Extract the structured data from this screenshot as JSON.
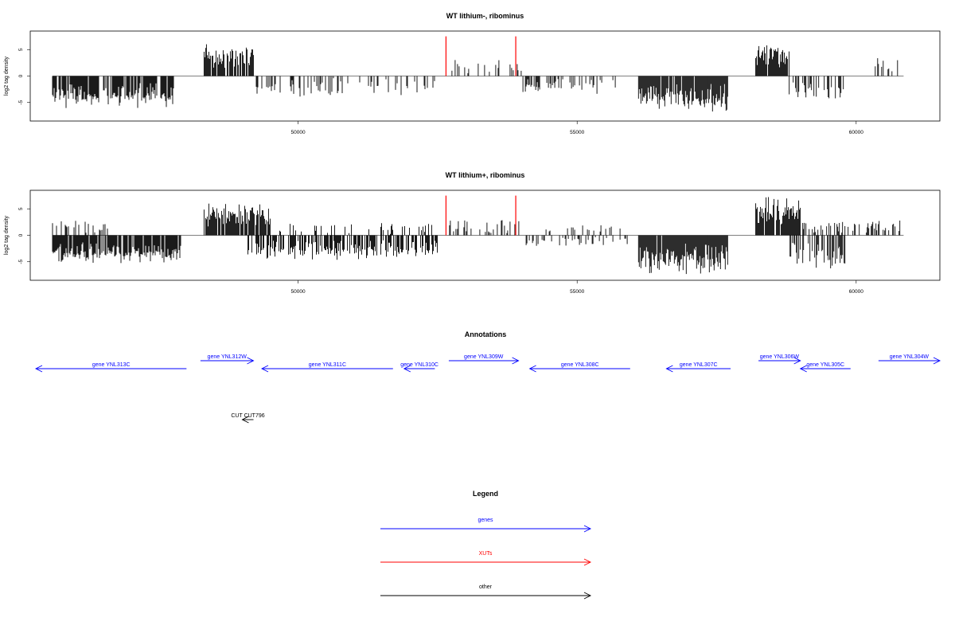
{
  "colors": {
    "gene": "#0000ff",
    "xut": "#ff0000",
    "other": "#000000",
    "signal": "#000000",
    "marker": "#ff0000"
  },
  "chart_data": [
    {
      "type": "bar",
      "title": "WT lithium-, ribominus",
      "ylabel": "log2 tag density",
      "xlim": [
        45200,
        61500
      ],
      "ylim": [
        -8.5,
        8.5
      ],
      "xticks": [
        50000,
        55000,
        60000
      ],
      "yticks": [
        -5,
        0,
        5
      ],
      "markers_x": [
        52650,
        53900
      ],
      "marker_height": 7.5,
      "segments": [
        {
          "start": 45600,
          "end": 47800,
          "sign": -1,
          "base": 3.0,
          "amp": 2.5,
          "density": 0.8
        },
        {
          "start": 48300,
          "end": 49200,
          "sign": 1,
          "base": 2.5,
          "amp": 3.0,
          "density": 0.8
        },
        {
          "start": 49250,
          "end": 52500,
          "sign": -1,
          "base": 0.8,
          "amp": 3.0,
          "density": 0.22
        },
        {
          "start": 52700,
          "end": 54000,
          "sign": 1,
          "base": 0.5,
          "amp": 2.5,
          "density": 0.2
        },
        {
          "start": 54000,
          "end": 55700,
          "sign": -1,
          "base": 1.0,
          "amp": 2.5,
          "density": 0.35
        },
        {
          "start": 56100,
          "end": 57700,
          "sign": -1,
          "base": 3.0,
          "amp": 3.5,
          "density": 0.9
        },
        {
          "start": 58200,
          "end": 58800,
          "sign": 1,
          "base": 3.0,
          "amp": 3.3,
          "density": 0.9
        },
        {
          "start": 58800,
          "end": 59800,
          "sign": -1,
          "base": 1.5,
          "amp": 3.0,
          "density": 0.4
        },
        {
          "start": 60200,
          "end": 60800,
          "sign": 1,
          "base": 1.0,
          "amp": 2.5,
          "density": 0.2
        }
      ]
    },
    {
      "type": "bar",
      "title": "WT lithium+, ribominus",
      "ylabel": "log2 tag density",
      "xlim": [
        45200,
        61500
      ],
      "ylim": [
        -8.5,
        8.5
      ],
      "xticks": [
        50000,
        55000,
        60000
      ],
      "yticks": [
        -5,
        0,
        5
      ],
      "markers_x": [
        52650,
        53900
      ],
      "marker_height": 7.5,
      "segments": [
        {
          "start": 45600,
          "end": 46600,
          "sign": 1,
          "base": 0.5,
          "amp": 2.5,
          "density": 0.3
        },
        {
          "start": 45600,
          "end": 47900,
          "sign": -1,
          "base": 2.5,
          "amp": 2.5,
          "density": 0.85
        },
        {
          "start": 48300,
          "end": 49500,
          "sign": 1,
          "base": 2.5,
          "amp": 3.5,
          "density": 0.9
        },
        {
          "start": 49100,
          "end": 52500,
          "sign": -1,
          "base": 1.5,
          "amp": 3.0,
          "density": 0.6
        },
        {
          "start": 49600,
          "end": 52400,
          "sign": 1,
          "base": 0.5,
          "amp": 2.0,
          "density": 0.2
        },
        {
          "start": 52700,
          "end": 54000,
          "sign": 1,
          "base": 0.5,
          "amp": 2.5,
          "density": 0.25
        },
        {
          "start": 54000,
          "end": 56000,
          "sign": -1,
          "base": 0.5,
          "amp": 1.5,
          "density": 0.25
        },
        {
          "start": 54100,
          "end": 55900,
          "sign": 1,
          "base": 0.5,
          "amp": 1.5,
          "density": 0.15
        },
        {
          "start": 56100,
          "end": 57700,
          "sign": -1,
          "base": 3.0,
          "amp": 4.0,
          "density": 0.95
        },
        {
          "start": 58200,
          "end": 59000,
          "sign": 1,
          "base": 3.0,
          "amp": 4.0,
          "density": 0.95
        },
        {
          "start": 58800,
          "end": 59800,
          "sign": -1,
          "base": 2.0,
          "amp": 4.0,
          "density": 0.6
        },
        {
          "start": 59000,
          "end": 60800,
          "sign": 1,
          "base": 0.8,
          "amp": 2.0,
          "density": 0.3
        }
      ]
    }
  ],
  "annotations": {
    "title": "Annotations",
    "genes": [
      {
        "label": "gene YNL313C",
        "start": 45300,
        "end": 48000,
        "dir": "left",
        "row": 2
      },
      {
        "label": "gene YNL312W",
        "start": 48250,
        "end": 49200,
        "dir": "right",
        "row": 1
      },
      {
        "label": "gene YNL311C",
        "start": 49350,
        "end": 51700,
        "dir": "left",
        "row": 2
      },
      {
        "label": "gene YNL310C",
        "start": 51900,
        "end": 52450,
        "dir": "left",
        "row": 2
      },
      {
        "label": "gene YNL309W",
        "start": 52700,
        "end": 53950,
        "dir": "right",
        "row": 1
      },
      {
        "label": "gene YNL308C",
        "start": 54150,
        "end": 55950,
        "dir": "left",
        "row": 2
      },
      {
        "label": "gene YNL307C",
        "start": 56600,
        "end": 57750,
        "dir": "left",
        "row": 2
      },
      {
        "label": "gene YNL306W",
        "start": 58250,
        "end": 59000,
        "dir": "right",
        "row": 1
      },
      {
        "label": "gene YNL305C",
        "start": 59000,
        "end": 59900,
        "dir": "left",
        "row": 2
      },
      {
        "label": "gene YNL304W",
        "start": 60400,
        "end": 61500,
        "dir": "right",
        "row": 1
      }
    ],
    "other": [
      {
        "label": "CUT CUT796",
        "start": 49000,
        "end": 49200,
        "dir": "left"
      }
    ]
  },
  "legend": {
    "title": "Legend",
    "entries": [
      {
        "label": "genes",
        "kind": "gene"
      },
      {
        "label": "XUTs",
        "kind": "xut"
      },
      {
        "label": "other",
        "kind": "other"
      }
    ]
  }
}
